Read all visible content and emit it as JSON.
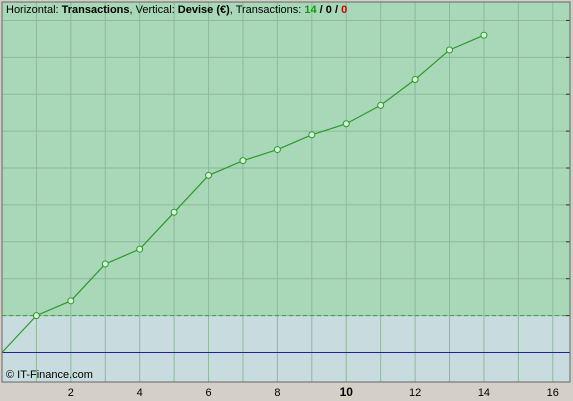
{
  "header": [
    {
      "text": "Horizontal: "
    },
    {
      "text": "Transactions",
      "bold": true
    },
    {
      "text": ", Vertical: "
    },
    {
      "text": "Devise (€)",
      "bold": true
    },
    {
      "text": ", Transactions: "
    },
    {
      "text": "14",
      "bold": true,
      "color": "#119911"
    },
    {
      "text": " / ",
      "bold": true
    },
    {
      "text": "0",
      "bold": true
    },
    {
      "text": " / ",
      "bold": true
    },
    {
      "text": "0",
      "bold": true,
      "color": "#cc0000"
    }
  ],
  "watermark": "© IT-Finance.com",
  "chart_data": {
    "type": "line",
    "x": [
      0,
      1,
      2,
      3,
      4,
      5,
      6,
      7,
      8,
      9,
      10,
      11,
      12,
      13,
      14
    ],
    "values": [
      0,
      1,
      1.4,
      2.4,
      2.8,
      3.8,
      4.8,
      5.2,
      5.5,
      5.9,
      6.2,
      6.7,
      7.4,
      8.2,
      8.6
    ],
    "color": "#2a9a2a",
    "xlim": [
      0,
      16.5
    ],
    "xticks": [
      2,
      4,
      6,
      8,
      10,
      12,
      14,
      16
    ],
    "bold_xtick": 10,
    "xgrid": [
      1,
      2,
      3,
      4,
      5,
      6,
      7,
      8,
      9,
      10,
      11,
      12,
      13,
      14,
      15,
      16
    ],
    "ylim": [
      -0.8,
      9.5
    ],
    "ygrid": [
      0,
      1,
      2,
      3,
      4,
      5,
      6,
      7,
      8,
      9
    ],
    "reference_line": 1,
    "baseline": 0,
    "fill_above": "#a8d8b8",
    "fill_below": "#c8dce0",
    "baseline_color": "#2020a0"
  }
}
